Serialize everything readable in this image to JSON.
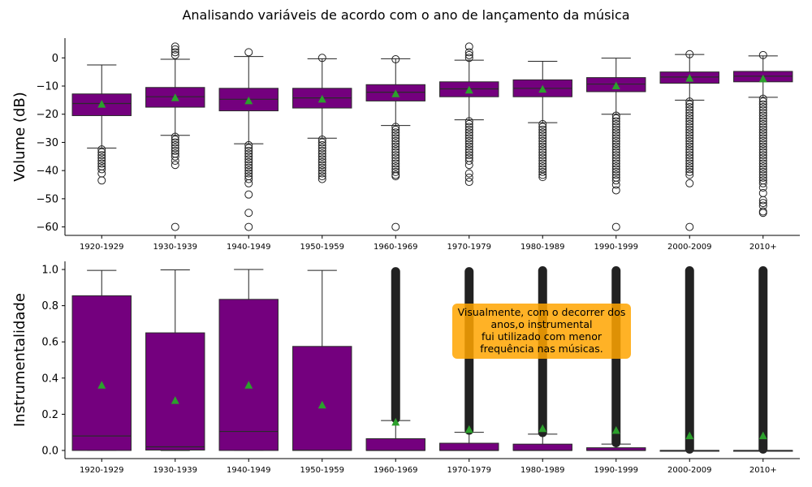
{
  "suptitle": "Analisando variáveis de acordo com o ano de lançamento da música",
  "annotation": "Visualmente, com o decorrer dos\nanos,o instrumental\nfui utilizado com menor\nfrequência nas músicas.",
  "colors": {
    "box": "#74007e",
    "median_line": "#2b2b2b",
    "mean_marker": "#2ca02c",
    "whisker": "#222222",
    "outlier": "#222222",
    "annotation_bg": "#ffa500"
  },
  "chart_data": [
    {
      "type": "box",
      "title": "",
      "xlabel": "",
      "ylabel": "Volume (dB)",
      "ylim": [
        -63,
        7
      ],
      "yticks": [
        0,
        -10,
        -20,
        -30,
        -40,
        -50,
        -60
      ],
      "grid": false,
      "categories": [
        "1920-1929",
        "1930-1939",
        "1940-1949",
        "1950-1959",
        "1960-1969",
        "1970-1979",
        "1980-1989",
        "1990-1999",
        "2000-2009",
        "2010+"
      ],
      "boxes": [
        {
          "whislo": -32,
          "q1": -20.5,
          "median": -16.2,
          "q3": -12.8,
          "whishi": -2.5,
          "mean": -16.5
        },
        {
          "whislo": -27.5,
          "q1": -17.5,
          "median": -13.8,
          "q3": -10.5,
          "whishi": -0.5,
          "mean": -14.2
        },
        {
          "whislo": -30.5,
          "q1": -18.8,
          "median": -14.7,
          "q3": -10.8,
          "whishi": 0.5,
          "mean": -15.3
        },
        {
          "whislo": -28.5,
          "q1": -17.8,
          "median": -14.2,
          "q3": -10.8,
          "whishi": -0.3,
          "mean": -14.7
        },
        {
          "whislo": -24,
          "q1": -15.3,
          "median": -12.2,
          "q3": -9.5,
          "whishi": -0.3,
          "mean": -12.8
        },
        {
          "whislo": -22,
          "q1": -13.8,
          "median": -11,
          "q3": -8.5,
          "whishi": -0.8,
          "mean": -11.5
        },
        {
          "whislo": -23,
          "q1": -13.8,
          "median": -10.8,
          "q3": -7.8,
          "whishi": -1.2,
          "mean": -11.2
        },
        {
          "whislo": -20,
          "q1": -12,
          "median": -9.3,
          "q3": -7,
          "whishi": -0.1,
          "mean": -10
        },
        {
          "whislo": -15,
          "q1": -9,
          "median": -6.8,
          "q3": -5,
          "whishi": 1.2,
          "mean": -7.3
        },
        {
          "whislo": -14,
          "q1": -8.5,
          "median": -6.5,
          "q3": -4.8,
          "whishi": 0.7,
          "mean": -7.5
        }
      ],
      "fliers": [
        [
          -32.5,
          -33.5,
          -34.5,
          -35.5,
          -36.5,
          -37.5,
          -38.5,
          -39.5,
          -41,
          -43.5
        ],
        [
          -28,
          -29,
          -30,
          -31,
          -32,
          -33,
          -34,
          -35,
          -36.5,
          -38,
          -60,
          1,
          2,
          3,
          4
        ],
        [
          -31,
          -32,
          -33,
          -34,
          -35,
          -36,
          -37,
          -38,
          -39,
          -40,
          -41,
          -42,
          -43,
          -44.5,
          -48.5,
          -55,
          -60,
          2
        ],
        [
          -29,
          -30,
          -31,
          -32,
          -33,
          -34,
          -35,
          -36,
          -37,
          -38,
          -39,
          -40,
          -41,
          -42,
          -43,
          0
        ],
        [
          -24.5,
          -25.5,
          -26.5,
          -27.5,
          -28.5,
          -29.5,
          -30.5,
          -31.5,
          -32.5,
          -33.5,
          -34.5,
          -35.5,
          -36.5,
          -37.5,
          -38.5,
          -39.5,
          -40.5,
          -41.5,
          -42,
          -60,
          -0.5
        ],
        [
          -22.5,
          -23.5,
          -24.5,
          -25.5,
          -26.5,
          -27.5,
          -28.5,
          -29.5,
          -30.5,
          -31.5,
          -32.5,
          -33.5,
          -34.5,
          -35.5,
          -36.5,
          -38,
          -41,
          -42.5,
          -44,
          0,
          1,
          2,
          4
        ],
        [
          -23.5,
          -24.5,
          -25.5,
          -26.5,
          -27.5,
          -28.5,
          -29.5,
          -30.5,
          -31.5,
          -32.5,
          -33.5,
          -34.5,
          -35.5,
          -36.5,
          -37.5,
          -38.5,
          -39.5,
          -40.5,
          -41.5,
          -42.3
        ],
        [
          -20.5,
          -21.5,
          -22.5,
          -23.5,
          -24.5,
          -25.5,
          -26.5,
          -27.5,
          -28.5,
          -29.5,
          -30.5,
          -31.5,
          -32.5,
          -33.5,
          -34.5,
          -35.5,
          -36.5,
          -37.5,
          -38.5,
          -39.5,
          -40.5,
          -41.5,
          -42.5,
          -43.5,
          -45,
          -47,
          -60
        ],
        [
          -15.5,
          -16.5,
          -17.5,
          -18.5,
          -19.5,
          -20.5,
          -21.5,
          -22.5,
          -23.5,
          -24.5,
          -25.5,
          -26.5,
          -27.5,
          -28.5,
          -29.5,
          -30.5,
          -31.5,
          -32.5,
          -33.5,
          -34.5,
          -35.5,
          -36.5,
          -37.5,
          -38.5,
          -39.5,
          -40.5,
          -41.5,
          -44.5,
          -60,
          1.3
        ],
        [
          -14.5,
          -15.5,
          -16.5,
          -17.5,
          -18.5,
          -19.5,
          -20.5,
          -21.5,
          -22.5,
          -23.5,
          -24.5,
          -25.5,
          -26.5,
          -27.5,
          -28.5,
          -29.5,
          -30.5,
          -31.5,
          -32.5,
          -33.5,
          -34.5,
          -35.5,
          -36.5,
          -37.5,
          -38.5,
          -39.5,
          -40.5,
          -41.5,
          -42.5,
          -43.5,
          -44.5,
          -46,
          -48,
          -50.5,
          -51.5,
          -52.5,
          -54.5,
          -55,
          1
        ]
      ]
    },
    {
      "type": "box",
      "title": "",
      "xlabel": "",
      "ylabel": "Instrumentalidade",
      "ylim": [
        -0.045,
        1.045
      ],
      "yticks": [
        0.0,
        0.2,
        0.4,
        0.6,
        0.8,
        1.0
      ],
      "grid": false,
      "categories": [
        "1920-1929",
        "1930-1939",
        "1940-1949",
        "1950-1959",
        "1960-1969",
        "1970-1979",
        "1980-1989",
        "1990-1999",
        "2000-2009",
        "2010+"
      ],
      "boxes": [
        {
          "whislo": 0,
          "q1": 0,
          "median": 0.08,
          "q3": 0.855,
          "whishi": 0.995,
          "mean": 0.36
        },
        {
          "whislo": 0,
          "q1": 0.002,
          "median": 0.02,
          "q3": 0.65,
          "whishi": 0.998,
          "mean": 0.275
        },
        {
          "whislo": 0,
          "q1": 0,
          "median": 0.105,
          "q3": 0.835,
          "whishi": 1.0,
          "mean": 0.36
        },
        {
          "whislo": 0,
          "q1": 0,
          "median": 0.001,
          "q3": 0.575,
          "whishi": 0.995,
          "mean": 0.25
        },
        {
          "whislo": 0,
          "q1": 0,
          "median": 0.0,
          "q3": 0.065,
          "whishi": 0.165,
          "mean": 0.155
        },
        {
          "whislo": 0,
          "q1": 0,
          "median": 0.0,
          "q3": 0.04,
          "whishi": 0.1,
          "mean": 0.115
        },
        {
          "whislo": 0,
          "q1": 0,
          "median": 0.0,
          "q3": 0.035,
          "whishi": 0.09,
          "mean": 0.12
        },
        {
          "whislo": 0,
          "q1": 0,
          "median": 0.0,
          "q3": 0.015,
          "whishi": 0.035,
          "mean": 0.11
        },
        {
          "whislo": 0,
          "q1": 0,
          "median": 0.0,
          "q3": 0.0,
          "whishi": 0.0,
          "mean": 0.08
        },
        {
          "whislo": 0,
          "q1": 0,
          "median": 0.0,
          "q3": 0.0,
          "whishi": 0.0,
          "mean": 0.08
        }
      ],
      "flier_range": [
        null,
        null,
        null,
        null,
        [
          0.17,
          0.995
        ],
        [
          0.105,
          0.995
        ],
        [
          0.092,
          1.0
        ],
        [
          0.036,
          1.0
        ],
        [
          0.0005,
          1.0
        ],
        [
          0.0005,
          1.0
        ]
      ]
    }
  ]
}
